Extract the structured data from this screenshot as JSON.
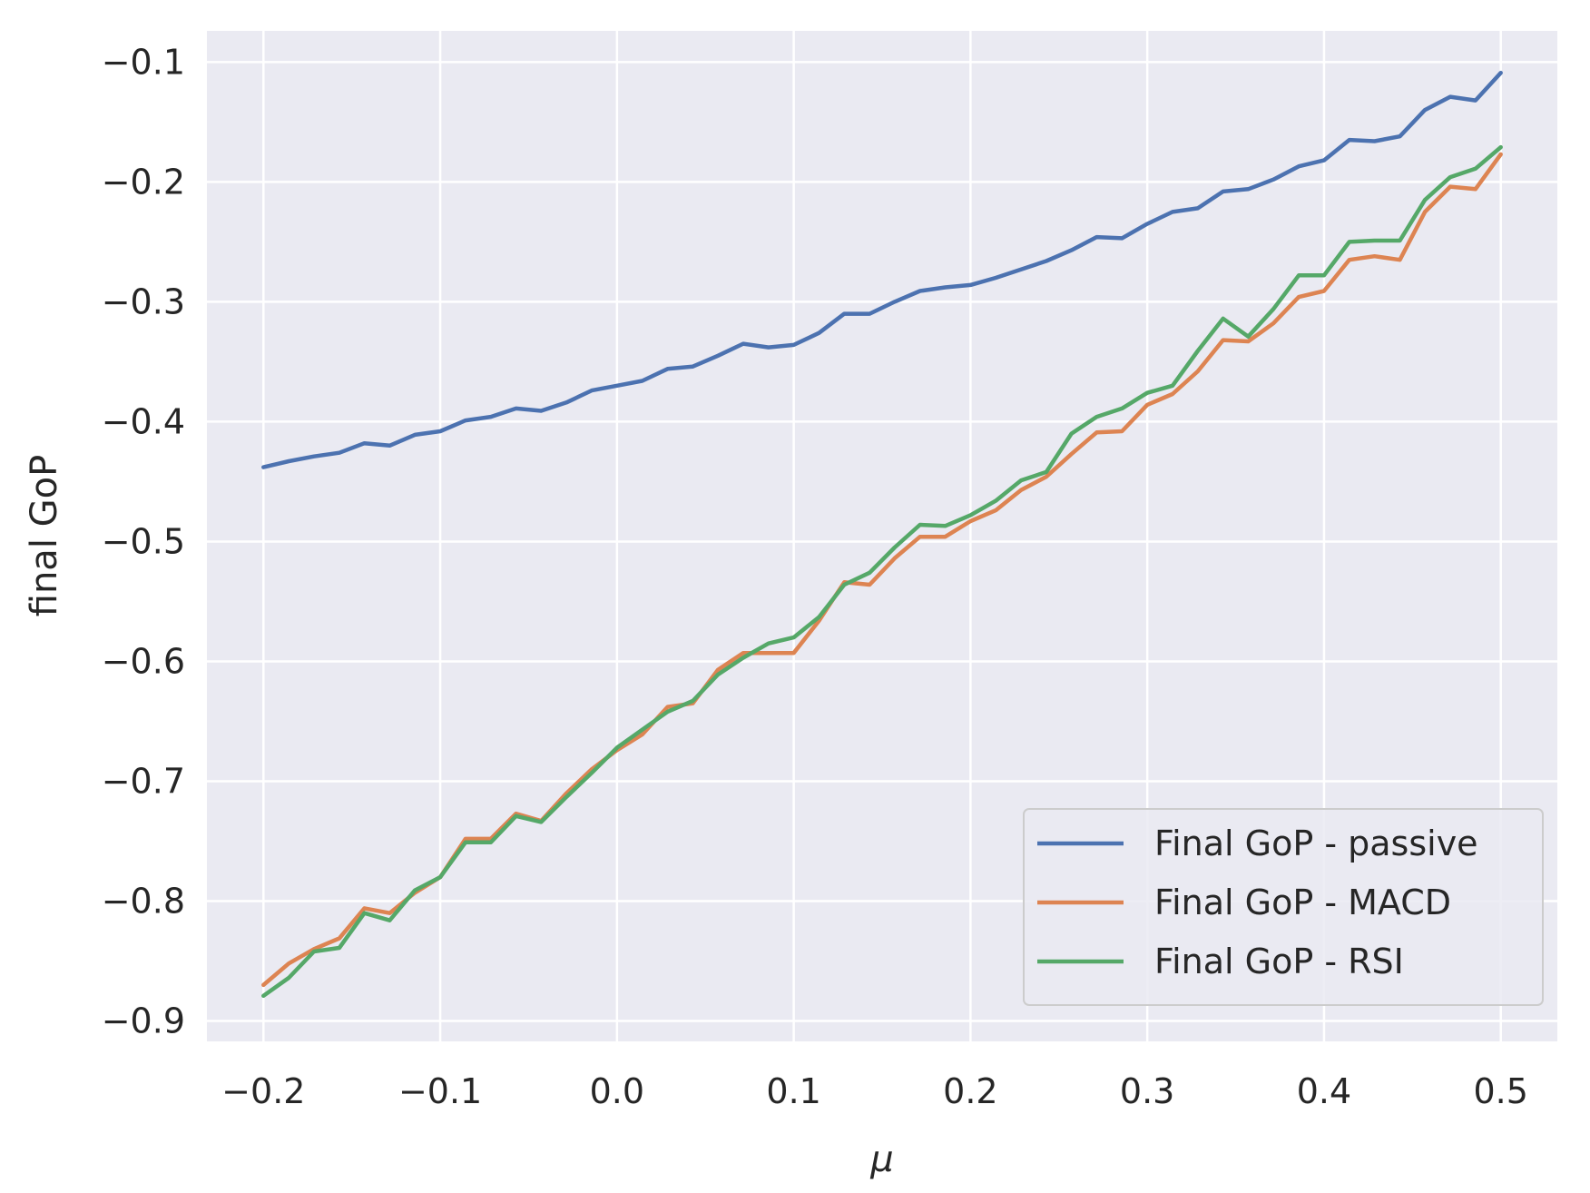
{
  "chart_data": {
    "type": "line",
    "title": "",
    "xlabel": "μ",
    "ylabel": "final GoP",
    "xlim": [
      -0.232,
      0.532
    ],
    "ylim": [
      -0.917,
      -0.074
    ],
    "grid": true,
    "legend_position": "lower-right",
    "x_ticks": [
      -0.2,
      -0.1,
      0.0,
      0.1,
      0.2,
      0.3,
      0.4,
      0.5
    ],
    "x_tick_labels": [
      "−0.2",
      "−0.1",
      "0.0",
      "0.1",
      "0.2",
      "0.3",
      "0.4",
      "0.5"
    ],
    "y_ticks": [
      -0.9,
      -0.8,
      -0.7,
      -0.6,
      -0.5,
      -0.4,
      -0.3,
      -0.2,
      -0.1
    ],
    "y_tick_labels": [
      "−0.9",
      "−0.8",
      "−0.7",
      "−0.6",
      "−0.5",
      "−0.4",
      "−0.3",
      "−0.2",
      "−0.1"
    ],
    "x": [
      -0.2,
      -0.1857,
      -0.1714,
      -0.1571,
      -0.1429,
      -0.1286,
      -0.1143,
      -0.1,
      -0.0857,
      -0.0714,
      -0.0571,
      -0.0429,
      -0.0286,
      -0.0143,
      0.0,
      0.0143,
      0.0286,
      0.0429,
      0.0571,
      0.0714,
      0.0857,
      0.1,
      0.1143,
      0.1286,
      0.1429,
      0.1571,
      0.1714,
      0.1857,
      0.2,
      0.2143,
      0.2286,
      0.2429,
      0.2571,
      0.2714,
      0.2857,
      0.3,
      0.3143,
      0.3286,
      0.3429,
      0.3571,
      0.3714,
      0.3857,
      0.4,
      0.4143,
      0.4286,
      0.4429,
      0.4571,
      0.4714,
      0.4857,
      0.5
    ],
    "series": [
      {
        "name": "Final GoP - passive",
        "color": "#4c72b0",
        "values": [
          -0.438,
          -0.433,
          -0.429,
          -0.426,
          -0.418,
          -0.42,
          -0.411,
          -0.408,
          -0.399,
          -0.396,
          -0.389,
          -0.391,
          -0.384,
          -0.374,
          -0.37,
          -0.366,
          -0.356,
          -0.354,
          -0.345,
          -0.335,
          -0.338,
          -0.336,
          -0.326,
          -0.31,
          -0.31,
          -0.3,
          -0.291,
          -0.288,
          -0.286,
          -0.28,
          -0.273,
          -0.266,
          -0.257,
          -0.246,
          -0.247,
          -0.235,
          -0.225,
          -0.222,
          -0.208,
          -0.206,
          -0.198,
          -0.187,
          -0.182,
          -0.165,
          -0.166,
          -0.162,
          -0.14,
          -0.129,
          -0.132,
          -0.109
        ]
      },
      {
        "name": "Final GoP - MACD",
        "color": "#dd8452",
        "values": [
          -0.87,
          -0.852,
          -0.84,
          -0.831,
          -0.806,
          -0.81,
          -0.793,
          -0.78,
          -0.748,
          -0.748,
          -0.727,
          -0.733,
          -0.71,
          -0.69,
          -0.674,
          -0.661,
          -0.638,
          -0.635,
          -0.607,
          -0.593,
          -0.593,
          -0.593,
          -0.566,
          -0.534,
          -0.536,
          -0.514,
          -0.496,
          -0.496,
          -0.483,
          -0.474,
          -0.457,
          -0.446,
          -0.427,
          -0.409,
          -0.408,
          -0.386,
          -0.377,
          -0.358,
          -0.332,
          -0.333,
          -0.318,
          -0.296,
          -0.291,
          -0.265,
          -0.262,
          -0.265,
          -0.225,
          -0.204,
          -0.206,
          -0.177
        ]
      },
      {
        "name": "Final GoP - RSI",
        "color": "#55a868",
        "values": [
          -0.879,
          -0.864,
          -0.842,
          -0.839,
          -0.81,
          -0.816,
          -0.791,
          -0.78,
          -0.751,
          -0.751,
          -0.729,
          -0.734,
          -0.713,
          -0.693,
          -0.672,
          -0.657,
          -0.642,
          -0.633,
          -0.611,
          -0.597,
          -0.585,
          -0.58,
          -0.563,
          -0.536,
          -0.526,
          -0.505,
          -0.486,
          -0.487,
          -0.478,
          -0.466,
          -0.449,
          -0.442,
          -0.41,
          -0.396,
          -0.389,
          -0.376,
          -0.37,
          -0.341,
          -0.314,
          -0.329,
          -0.306,
          -0.278,
          -0.278,
          -0.25,
          -0.249,
          -0.249,
          -0.215,
          -0.196,
          -0.189,
          -0.171
        ]
      }
    ]
  }
}
